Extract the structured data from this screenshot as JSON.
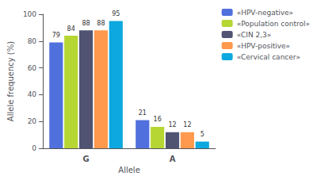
{
  "chart_data": {
    "type": "bar",
    "xlabel": "Allele",
    "ylabel": "Allele frequency (%)",
    "categories": [
      "G",
      "A"
    ],
    "series": [
      {
        "name": "«HPV-negative»",
        "values": [
          79,
          21
        ]
      },
      {
        "name": "«Population control»",
        "values": [
          84,
          16
        ]
      },
      {
        "name": "«CIN 2,3»",
        "values": [
          88,
          12
        ]
      },
      {
        "name": "«HPV-positive»",
        "values": [
          88,
          12
        ]
      },
      {
        "name": "«Cervical cancer»",
        "values": [
          95,
          5
        ]
      }
    ],
    "ylim": [
      0,
      100
    ],
    "yticks": [
      0,
      20,
      40,
      60,
      80,
      100
    ],
    "data_labels": true,
    "grid": false,
    "legend": "upper right"
  }
}
